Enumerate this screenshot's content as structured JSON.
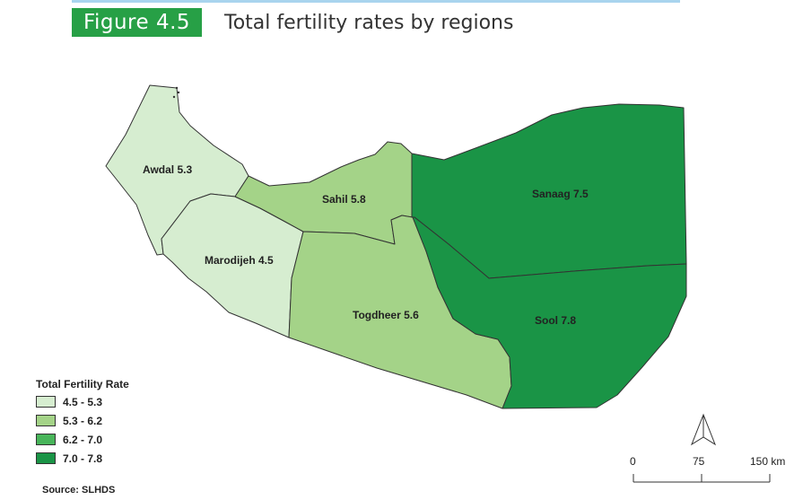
{
  "figure": {
    "label": "Figure 4.5",
    "title": "Total fertility rates by regions"
  },
  "regions": [
    {
      "id": "awdal",
      "label": "Awdal 5.3",
      "value": 5.3,
      "color": "#d6edd0"
    },
    {
      "id": "marodijeh",
      "label": "Marodijeh 4.5",
      "value": 4.5,
      "color": "#d6edd0"
    },
    {
      "id": "sahil",
      "label": "Sahil 5.8",
      "value": 5.8,
      "color": "#a4d388"
    },
    {
      "id": "togdheer",
      "label": "Togdheer 5.6",
      "value": 5.6,
      "color": "#a4d388"
    },
    {
      "id": "sanaag",
      "label": "Sanaag 7.5",
      "value": 7.5,
      "color": "#1a9446"
    },
    {
      "id": "sool",
      "label": "Sool 7.8",
      "value": 7.8,
      "color": "#1a9446"
    }
  ],
  "legend": {
    "title": "Total Fertility Rate",
    "items": [
      {
        "label": "4.5 - 5.3",
        "color": "#d6edd0"
      },
      {
        "label": "5.3 - 6.2",
        "color": "#a4d388"
      },
      {
        "label": "6.2 - 7.0",
        "color": "#48b55a"
      },
      {
        "label": "7.0 - 7.8",
        "color": "#1a9446"
      }
    ]
  },
  "scale_bar": {
    "ticks": [
      "0",
      "75",
      "150 km"
    ]
  },
  "source": "Source: SLHDS",
  "north_arrow": "north-arrow-icon"
}
